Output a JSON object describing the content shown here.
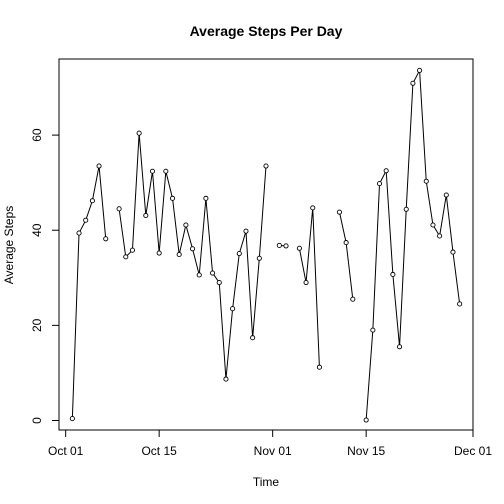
{
  "chart_data": {
    "type": "line",
    "title": "Average Steps Per Day",
    "xlabel": "Time",
    "ylabel": "Average Steps",
    "x_start": "2012-10-02",
    "x_ticks": [
      {
        "date": "2012-10-01",
        "label": "Oct 01"
      },
      {
        "date": "2012-10-15",
        "label": "Oct 15"
      },
      {
        "date": "2012-11-01",
        "label": "Nov 01"
      },
      {
        "date": "2012-11-15",
        "label": "Nov 15"
      },
      {
        "date": "2012-12-01",
        "label": "Dec 01"
      }
    ],
    "xlim": [
      "2012-09-30",
      "2012-12-01"
    ],
    "y_ticks": [
      0,
      20,
      40,
      60
    ],
    "ylim": [
      -2,
      76
    ],
    "grid": false,
    "values": [
      0.4,
      39.4,
      42.1,
      46.2,
      53.5,
      38.2,
      null,
      44.5,
      34.4,
      35.8,
      60.4,
      43.1,
      52.4,
      35.2,
      52.4,
      46.7,
      34.9,
      41.1,
      36.1,
      30.6,
      46.7,
      31.0,
      29.0,
      8.7,
      23.5,
      35.1,
      39.8,
      17.4,
      34.1,
      53.5,
      null,
      36.8,
      36.7,
      null,
      36.2,
      29.0,
      44.7,
      11.2,
      null,
      null,
      43.8,
      37.4,
      25.5,
      null,
      0.1,
      19.0,
      49.8,
      52.5,
      30.7,
      15.5,
      44.4,
      70.9,
      73.6,
      50.3,
      41.1,
      38.8,
      47.4,
      35.4,
      24.5
    ]
  }
}
